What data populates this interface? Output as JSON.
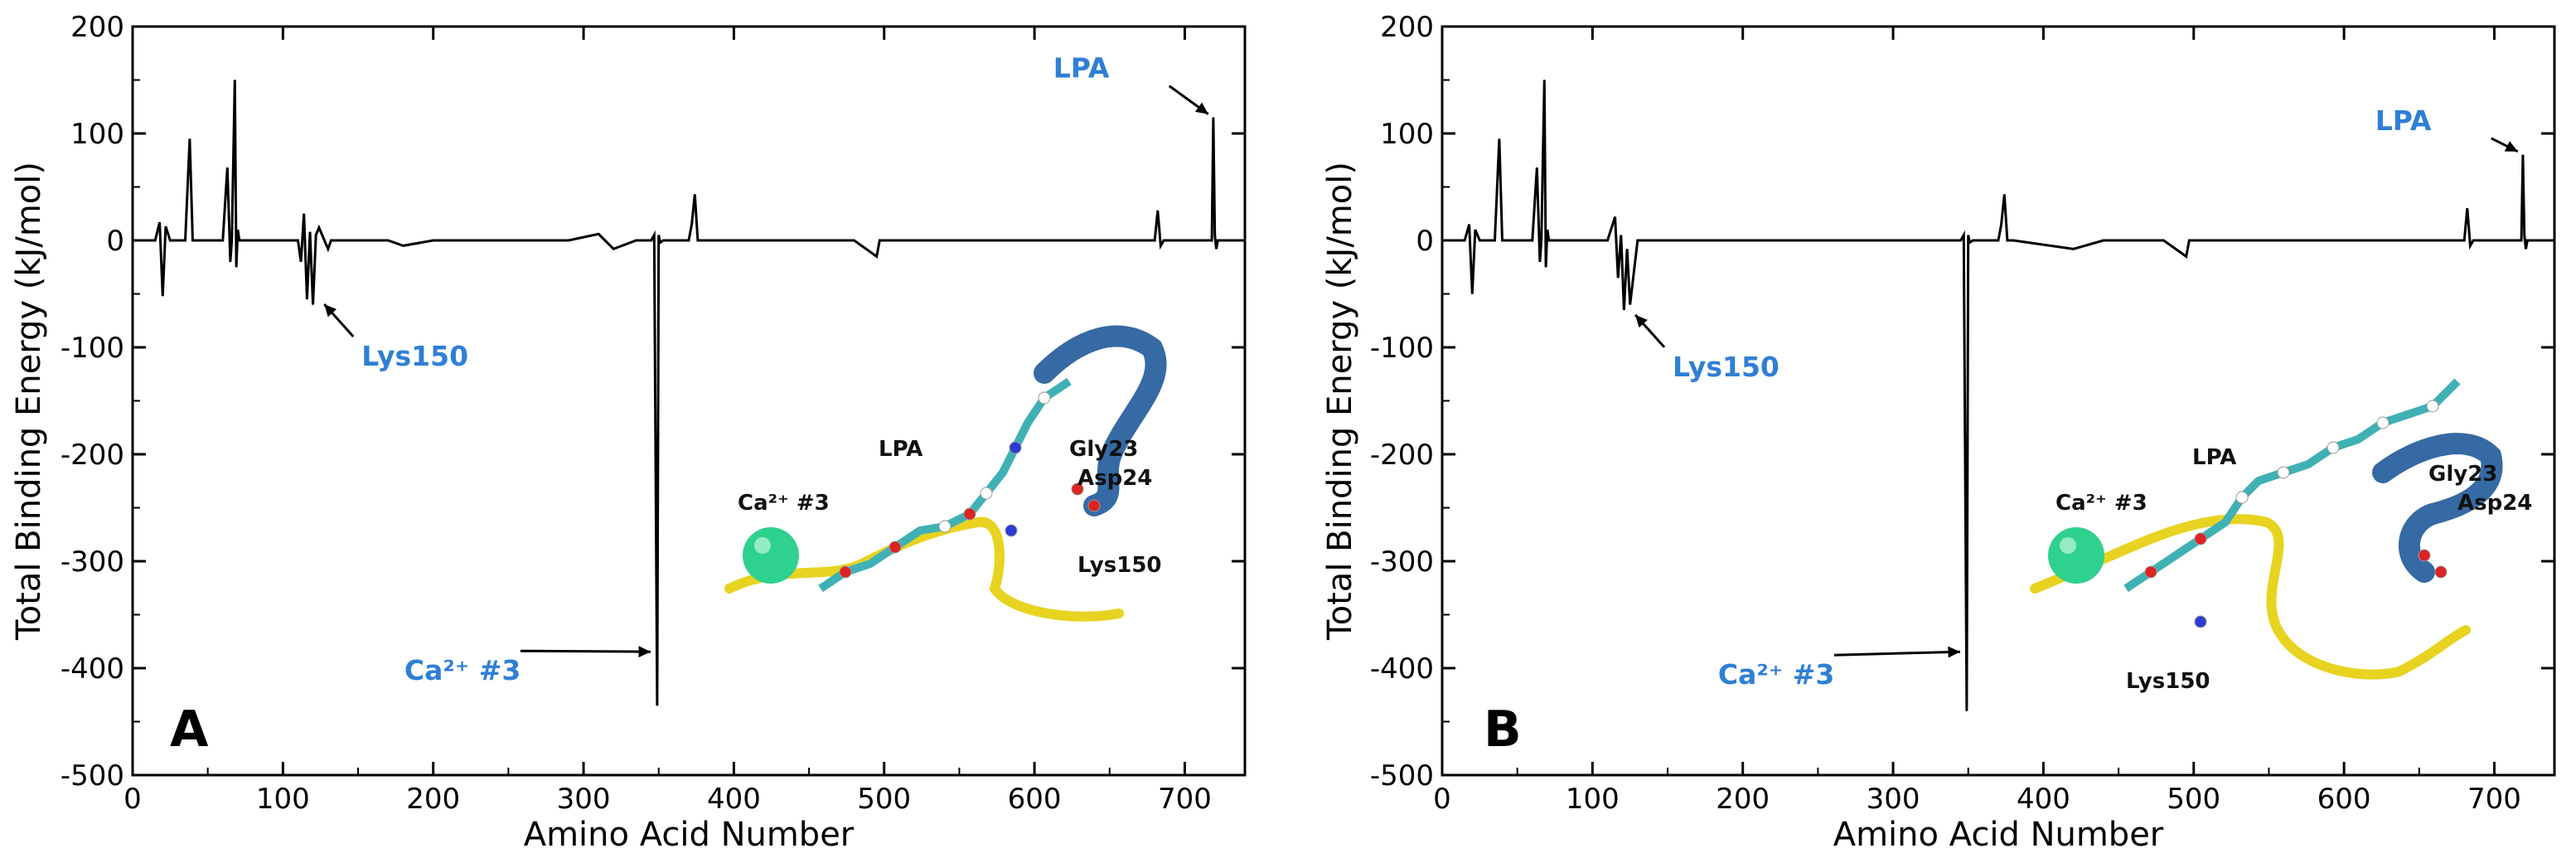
{
  "chart_data": [
    {
      "type": "line",
      "panel_label": "A",
      "xlabel": "Amino Acid Number",
      "ylabel": "Total Binding Energy (kJ/mol)",
      "xlim": [
        0,
        740
      ],
      "ylim": [
        -500,
        200
      ],
      "xticks": [
        0,
        100,
        200,
        300,
        400,
        500,
        600,
        700
      ],
      "yticks": [
        -500,
        -400,
        -300,
        -200,
        -100,
        0,
        100,
        200
      ],
      "series": [
        {
          "x": [
            0,
            15,
            18,
            20,
            22,
            25,
            35,
            38,
            40,
            42,
            60,
            63,
            65,
            66,
            68,
            69,
            70,
            71,
            72,
            74,
            100,
            110,
            112,
            114,
            116,
            118,
            120,
            122,
            124,
            130,
            132,
            140,
            170,
            180,
            200,
            230,
            250,
            290,
            310,
            320,
            335,
            345,
            347,
            349,
            350,
            351,
            353,
            360,
            370,
            372,
            374,
            376,
            380,
            400,
            430,
            450,
            480,
            495,
            497,
            500,
            520,
            550,
            600,
            640,
            670,
            680,
            682,
            684,
            686,
            690,
            700,
            710,
            715,
            718,
            719,
            720,
            721,
            722,
            725,
            735
          ],
          "y": [
            0,
            0,
            17,
            -52,
            13,
            0,
            0,
            95,
            0,
            0,
            0,
            68,
            -20,
            0,
            150,
            -25,
            10,
            0,
            0,
            0,
            0,
            0,
            -20,
            25,
            -55,
            8,
            -60,
            5,
            12,
            -8,
            0,
            0,
            0,
            -5,
            0,
            0,
            0,
            0,
            6,
            -8,
            0,
            0,
            5,
            -435,
            5,
            -2,
            0,
            0,
            0,
            15,
            43,
            0,
            0,
            0,
            0,
            0,
            0,
            -15,
            0,
            0,
            0,
            0,
            0,
            0,
            0,
            0,
            28,
            -5,
            0,
            0,
            0,
            0,
            0,
            0,
            115,
            5,
            -8,
            0,
            0,
            0
          ]
        }
      ],
      "annotations": [
        {
          "text": "LPA",
          "x": 720,
          "y": 115
        },
        {
          "text": "Lys150",
          "x": 122,
          "y": -55
        },
        {
          "text": "Ca²⁺ #3",
          "x": 349,
          "y": -380
        }
      ],
      "inset_labels": [
        "LPA",
        "Gly23",
        "Asp24",
        "Ca²⁺ #3",
        "Lys150"
      ]
    },
    {
      "type": "line",
      "panel_label": "B",
      "xlabel": "Amino Acid Number",
      "ylabel": "Total Binding Energy (kJ/mol)",
      "xlim": [
        0,
        740
      ],
      "ylim": [
        -500,
        200
      ],
      "xticks": [
        0,
        100,
        200,
        300,
        400,
        500,
        600,
        700
      ],
      "yticks": [
        -500,
        -400,
        -300,
        -200,
        -100,
        0,
        100,
        200
      ],
      "series": [
        {
          "x": [
            0,
            15,
            18,
            20,
            22,
            25,
            35,
            38,
            40,
            42,
            60,
            63,
            65,
            66,
            68,
            69,
            70,
            71,
            72,
            74,
            100,
            110,
            115,
            117,
            119,
            121,
            123,
            125,
            130,
            170,
            200,
            250,
            290,
            340,
            345,
            347,
            349,
            350,
            351,
            353,
            360,
            370,
            372,
            374,
            376,
            380,
            420,
            440,
            450,
            480,
            495,
            497,
            500,
            550,
            600,
            640,
            660,
            680,
            682,
            684,
            686,
            690,
            700,
            710,
            715,
            718,
            719,
            720,
            721,
            722,
            725,
            735
          ],
          "y": [
            0,
            0,
            15,
            -50,
            10,
            0,
            0,
            95,
            0,
            0,
            0,
            68,
            -20,
            0,
            150,
            -25,
            10,
            0,
            0,
            0,
            0,
            0,
            22,
            -35,
            5,
            -65,
            -8,
            -60,
            0,
            0,
            0,
            0,
            0,
            0,
            0,
            5,
            -440,
            5,
            -2,
            0,
            0,
            0,
            15,
            43,
            0,
            0,
            -8,
            0,
            0,
            0,
            -15,
            0,
            0,
            0,
            0,
            0,
            0,
            0,
            30,
            -5,
            0,
            0,
            0,
            0,
            0,
            0,
            80,
            5,
            -8,
            0,
            0,
            0
          ]
        }
      ],
      "annotations": [
        {
          "text": "LPA",
          "x": 720,
          "y": 80
        },
        {
          "text": "Lys150",
          "x": 123,
          "y": -65
        },
        {
          "text": "Ca²⁺ #3",
          "x": 349,
          "y": -380
        }
      ],
      "inset_labels": [
        "LPA",
        "Gly23",
        "Asp24",
        "Ca²⁺ #3",
        "Lys150"
      ]
    }
  ]
}
